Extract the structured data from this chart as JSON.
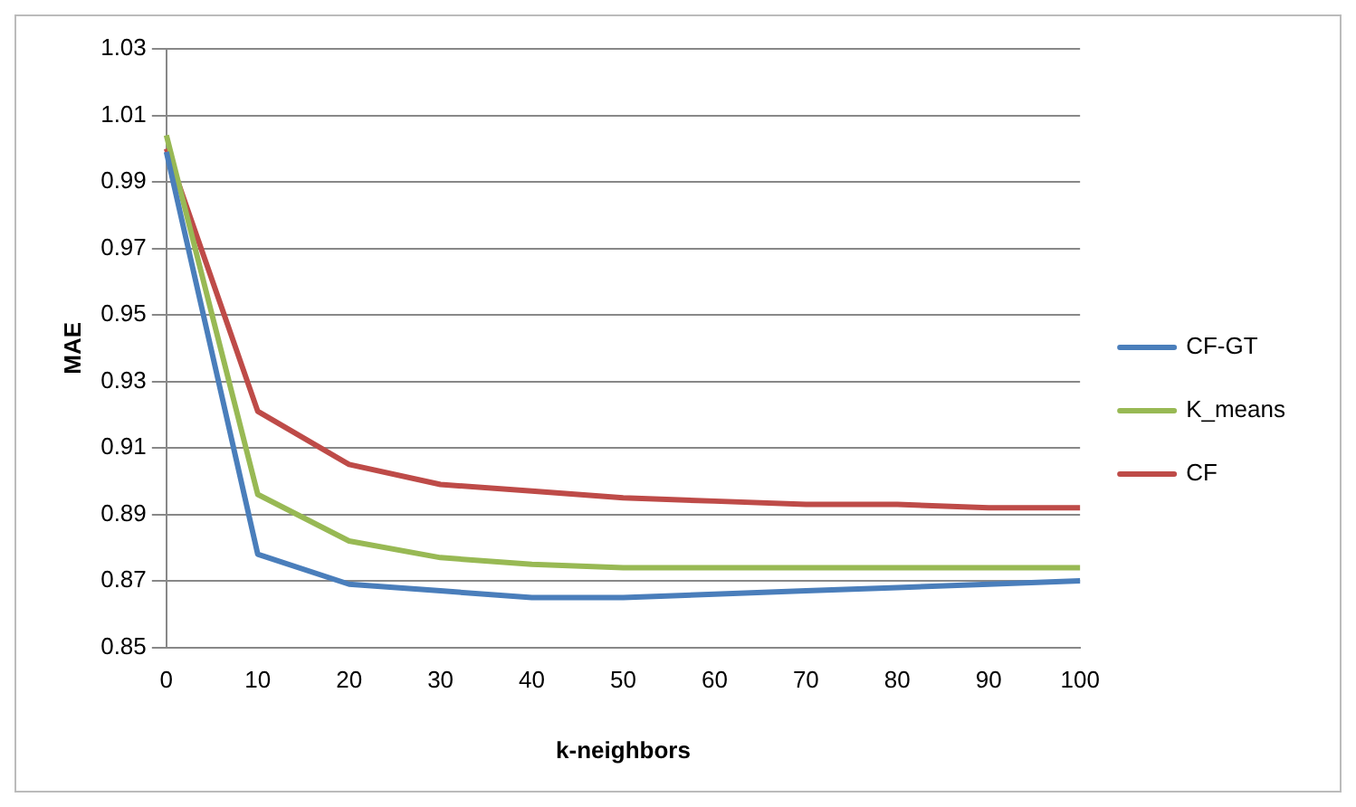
{
  "chart_data": {
    "type": "line",
    "xlabel": "k-neighbors",
    "ylabel": "MAE",
    "categories": [
      "0",
      "10",
      "20",
      "30",
      "40",
      "50",
      "60",
      "70",
      "80",
      "90",
      "100"
    ],
    "series": [
      {
        "name": "CF-GT",
        "color": "#4a7ebb",
        "values": [
          0.999,
          0.878,
          0.869,
          0.867,
          0.865,
          0.865,
          0.866,
          0.867,
          0.868,
          0.869,
          0.87
        ]
      },
      {
        "name": "K_means",
        "color": "#98b954",
        "values": [
          1.004,
          0.896,
          0.882,
          0.877,
          0.875,
          0.874,
          0.874,
          0.874,
          0.874,
          0.874,
          0.874
        ]
      },
      {
        "name": "CF",
        "color": "#be4b48",
        "values": [
          1.0,
          0.921,
          0.905,
          0.899,
          0.897,
          0.895,
          0.894,
          0.893,
          0.893,
          0.892,
          0.892
        ]
      }
    ],
    "ylim": [
      0.85,
      1.03
    ],
    "yticks": [
      0.85,
      0.87,
      0.89,
      0.91,
      0.93,
      0.95,
      0.97,
      0.99,
      1.01,
      1.03
    ],
    "grid": "y",
    "legend": "right",
    "marker": "none",
    "line_style": "solid"
  }
}
